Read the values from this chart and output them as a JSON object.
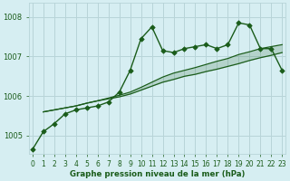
{
  "title": "Graphe pression niveau de la mer (hPa)",
  "background_color": "#d6eef2",
  "grid_color": "#b8d4d8",
  "line_color": "#1a5c1a",
  "xlim": [
    -0.3,
    23.3
  ],
  "ylim": [
    1004.55,
    1008.35
  ],
  "yticks": [
    1005,
    1006,
    1007,
    1008
  ],
  "xticks": [
    0,
    1,
    2,
    3,
    4,
    5,
    6,
    7,
    8,
    9,
    10,
    11,
    12,
    13,
    14,
    15,
    16,
    17,
    18,
    19,
    20,
    21,
    22,
    23
  ],
  "series1_x": [
    0,
    1,
    2,
    3,
    4,
    5,
    6,
    7,
    8,
    9,
    10,
    11,
    12,
    13,
    14,
    15,
    16,
    17,
    18,
    19,
    20,
    21,
    22,
    23
  ],
  "series1_y": [
    1004.65,
    1005.1,
    1005.3,
    1005.55,
    1005.65,
    1005.7,
    1005.75,
    1005.85,
    1006.1,
    1006.65,
    1007.45,
    1007.75,
    1007.15,
    1007.1,
    1007.2,
    1007.25,
    1007.3,
    1007.2,
    1007.3,
    1007.85,
    1007.8,
    1007.2,
    1007.2,
    1006.65
  ],
  "series2_x": [
    1,
    2,
    3,
    4,
    5,
    6,
    7,
    8,
    9,
    10,
    11,
    12,
    13,
    14,
    15,
    16,
    17,
    18,
    19,
    20,
    21,
    22,
    23
  ],
  "series2_y": [
    1005.6,
    1005.65,
    1005.7,
    1005.75,
    1005.82,
    1005.88,
    1005.95,
    1006.02,
    1006.1,
    1006.22,
    1006.35,
    1006.48,
    1006.58,
    1006.65,
    1006.72,
    1006.8,
    1006.88,
    1006.95,
    1007.05,
    1007.12,
    1007.2,
    1007.25,
    1007.3
  ],
  "series3_x": [
    1,
    2,
    3,
    4,
    5,
    6,
    7,
    8,
    9,
    10,
    11,
    12,
    13,
    14,
    15,
    16,
    17,
    18,
    19,
    20,
    21,
    22,
    23
  ],
  "series3_y": [
    1005.6,
    1005.65,
    1005.7,
    1005.75,
    1005.82,
    1005.88,
    1005.93,
    1005.98,
    1006.05,
    1006.15,
    1006.25,
    1006.35,
    1006.42,
    1006.5,
    1006.55,
    1006.62,
    1006.68,
    1006.75,
    1006.82,
    1006.9,
    1006.97,
    1007.03,
    1007.1
  ],
  "tick_fontsize": 5.5,
  "xlabel_fontsize": 6.2,
  "figsize": [
    3.2,
    2.0
  ],
  "dpi": 100
}
